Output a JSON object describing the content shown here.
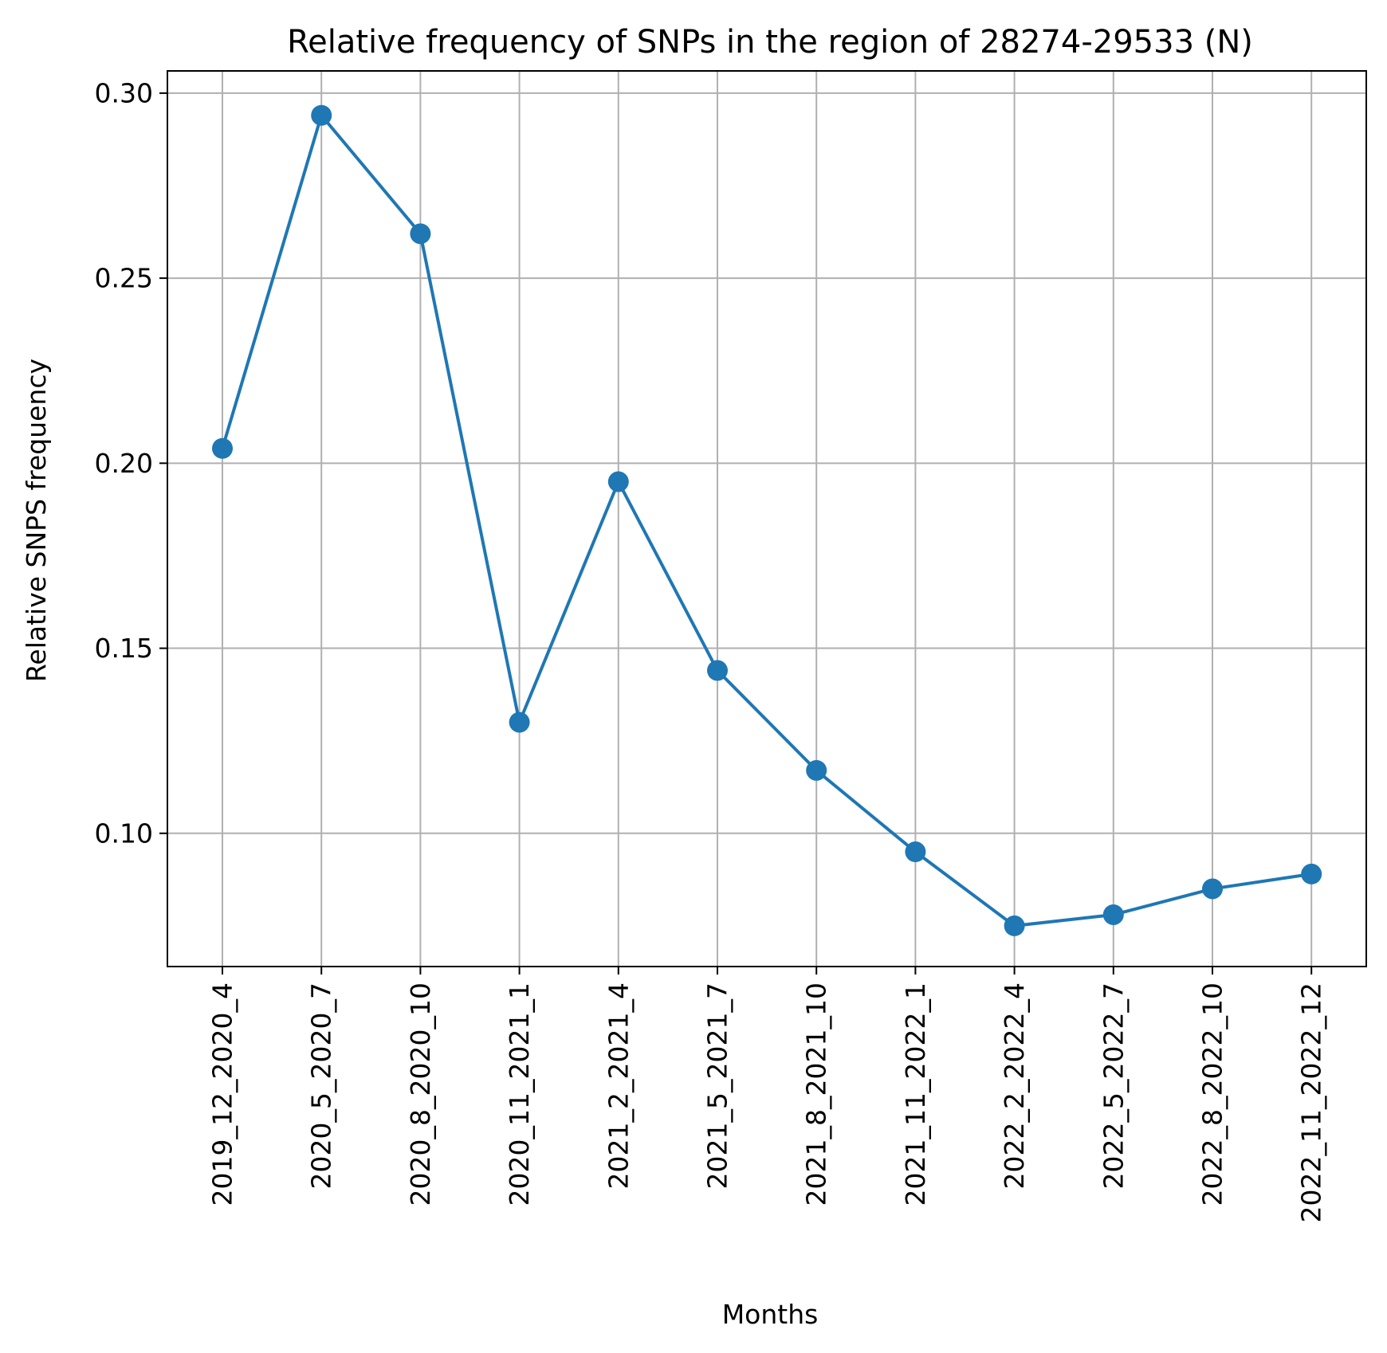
{
  "chart_data": {
    "type": "line",
    "title": "Relative frequency of SNPs in the region of 28274-29533 (N)",
    "xlabel": "Months",
    "ylabel": "Relative SNPS frequency",
    "categories": [
      "2019_12_2020_4",
      "2020_5_2020_7",
      "2020_8_2020_10",
      "2020_11_2021_1",
      "2021_2_2021_4",
      "2021_5_2021_7",
      "2021_8_2021_10",
      "2021_11_2022_1",
      "2022_2_2022_4",
      "2022_5_2022_7",
      "2022_8_2022_10",
      "2022_11_2022_12"
    ],
    "series": [
      {
        "values": [
          0.204,
          0.294,
          0.262,
          0.13,
          0.195,
          0.144,
          0.117,
          0.095,
          0.075,
          0.078,
          0.085,
          0.089
        ],
        "color": "#1f77b4",
        "marker": "circle"
      }
    ],
    "ylim": [
      0.064,
      0.306
    ],
    "yticks": [
      0.1,
      0.15,
      0.2,
      0.25,
      0.3
    ],
    "ytick_labels": [
      "0.10",
      "0.15",
      "0.20",
      "0.25",
      "0.30"
    ],
    "grid": true,
    "legend": false
  }
}
